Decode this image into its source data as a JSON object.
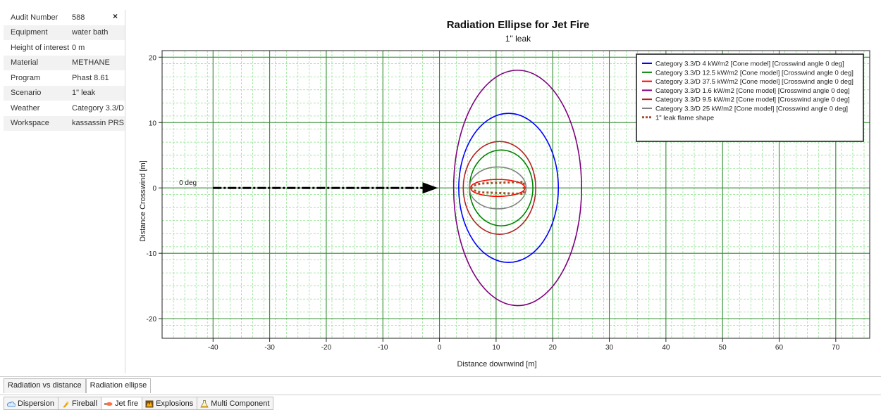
{
  "properties": [
    {
      "key": "Audit Number",
      "value": "588"
    },
    {
      "key": "Equipment",
      "value": "water bath"
    },
    {
      "key": "Height of interest",
      "value": "0 m"
    },
    {
      "key": "Material",
      "value": "METHANE"
    },
    {
      "key": "Program",
      "value": "Phast 8.61"
    },
    {
      "key": "Scenario",
      "value": "1\" leak"
    },
    {
      "key": "Weather",
      "value": "Category 3.3/D"
    },
    {
      "key": "Workspace",
      "value": "kassassin PRS"
    }
  ],
  "close_glyph": "×",
  "view_tabs": [
    {
      "label": "Radiation vs distance",
      "active": false
    },
    {
      "label": "Radiation ellipse",
      "active": true
    }
  ],
  "model_tabs": [
    {
      "label": "Dispersion",
      "icon": "cloud-icon"
    },
    {
      "label": "Fireball",
      "icon": "fireball-icon"
    },
    {
      "label": "Jet fire",
      "icon": "jet-fire-icon",
      "active": true
    },
    {
      "label": "Explosions",
      "icon": "explosion-icon"
    },
    {
      "label": "Multi Component",
      "icon": "flask-icon"
    }
  ],
  "chart_data": {
    "type": "line",
    "title": "Radiation Ellipse for Jet Fire",
    "subtitle": "1\" leak",
    "xlabel": "Distance downwind [m]",
    "ylabel": "Distance Crosswind [m]",
    "xlim": [
      -49,
      76
    ],
    "ylim": [
      -23,
      21
    ],
    "xticks": [
      -40,
      -30,
      -20,
      -10,
      0,
      10,
      20,
      30,
      40,
      50,
      60,
      70
    ],
    "yticks": [
      -20,
      -10,
      0,
      10,
      20
    ],
    "grid": true,
    "legend_position": "top-right",
    "wind_arrow": {
      "label": "0 deg",
      "x_start": -40,
      "x_end": 0,
      "y": 0
    },
    "series": [
      {
        "name": "Category 3.3/D 4 kW/m2 [Cone model] [Crosswind angle 0 deg]",
        "color": "#0000ff",
        "shape": "ellipse",
        "cx": 12.2,
        "cy": 0,
        "rx": 8.8,
        "ry": 11.4
      },
      {
        "name": "Category 3.3/D 12.5 kW/m2 [Cone model] [Crosswind angle 0 deg]",
        "color": "#008000",
        "shape": "ellipse",
        "cx": 10.9,
        "cy": 0,
        "rx": 5.6,
        "ry": 5.8
      },
      {
        "name": "Category 3.3/D 37.5 kW/m2 [Cone model] [Crosswind angle 0 deg]",
        "color": "#ff0000",
        "shape": "ellipse",
        "cx": 10.3,
        "cy": 0,
        "rx": 4.8,
        "ry": 1.3
      },
      {
        "name": "Category 3.3/D 1.6 kW/m2 [Cone model] [Crosswind angle 0 deg]",
        "color": "#800080",
        "shape": "ellipse",
        "cx": 13.8,
        "cy": 0,
        "rx": 11.3,
        "ry": 18.0
      },
      {
        "name": "Category 3.3/D 9.5 kW/m2 [Cone model] [Crosswind angle 0 deg]",
        "color": "#b22222",
        "shape": "ellipse",
        "cx": 10.6,
        "cy": 0,
        "rx": 6.4,
        "ry": 7.1
      },
      {
        "name": "Category 3.3/D 25 kW/m2 [Cone model] [Crosswind angle 0 deg]",
        "color": "#808080",
        "shape": "ellipse",
        "cx": 10.3,
        "cy": 0,
        "rx": 5.0,
        "ry": 3.2
      },
      {
        "name": "1\" leak flame shape",
        "color": "#a0522d",
        "shape": "flame",
        "x": [
          5.5,
          14.9
        ],
        "half_width": 0.7
      }
    ]
  }
}
